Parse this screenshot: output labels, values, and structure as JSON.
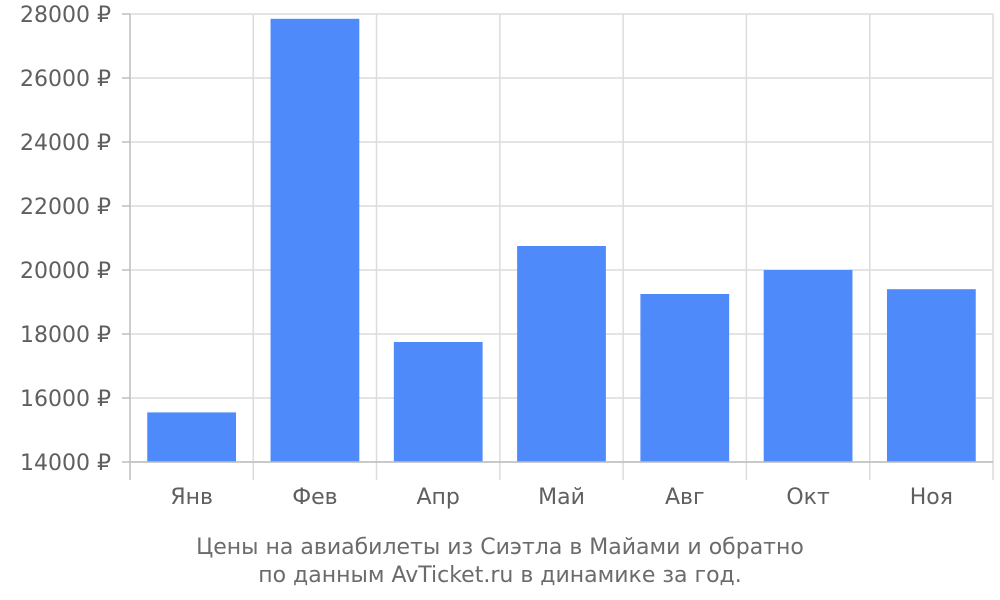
{
  "chart_data": {
    "type": "bar",
    "categories": [
      "Янв",
      "Фев",
      "Апр",
      "Май",
      "Авг",
      "Окт",
      "Ноя"
    ],
    "values": [
      15550,
      27850,
      17750,
      20750,
      19250,
      20000,
      19400
    ],
    "ylim": [
      14000,
      28000
    ],
    "yticks": [
      14000,
      16000,
      18000,
      20000,
      22000,
      24000,
      26000,
      28000
    ],
    "ytick_suffix": " ₽",
    "grid": true,
    "bar_color": "#4e8af9",
    "title": "",
    "xlabel": "",
    "ylabel": ""
  },
  "caption": {
    "line1": "Цены на авиабилеты из Сиэтла в Майами и обратно",
    "line2": "по данным AvTicket.ru в динамике за год."
  }
}
